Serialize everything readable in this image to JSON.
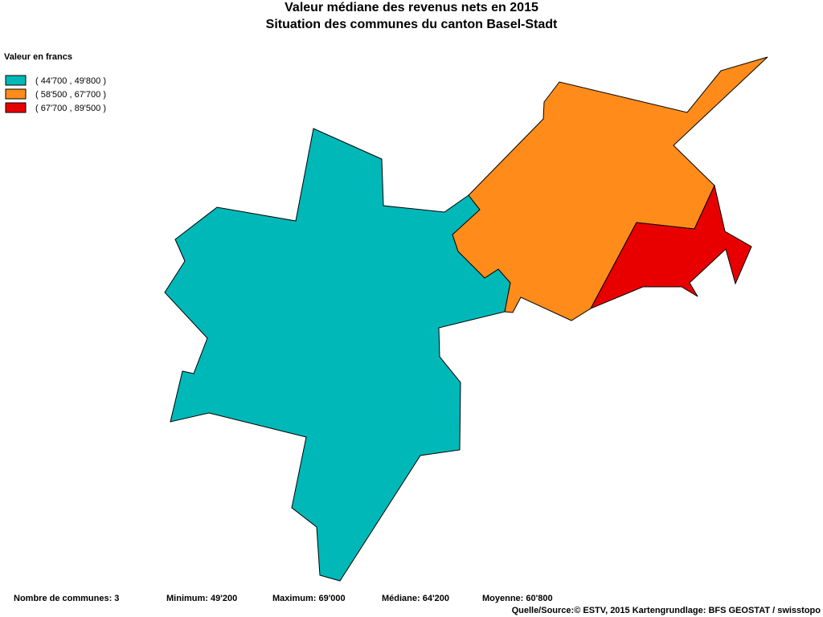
{
  "header": {
    "title": "Valeur médiane des revenus nets en 2015",
    "subtitle": "Situation des communes du canton Basel-Stadt"
  },
  "legend": {
    "title": "Valeur en francs",
    "items": [
      {
        "label": "( 44'700 , 49'800 )",
        "color": "#00b8b8"
      },
      {
        "label": "( 58'500 , 67'700 )",
        "color": "#ff8c1a"
      },
      {
        "label": "( 67'700 , 89'500 )",
        "color": "#e80000"
      }
    ]
  },
  "footer": {
    "stats": [
      "Nombre de communes: 3",
      "Minimum: 49'200",
      "Maximum: 69'000",
      "Médiane: 64'200",
      "Moyenne: 60'800"
    ],
    "source": "Quelle/Source:© ESTV, 2015 Kartengrundlage: BFS GEOSTAT / swisstopo"
  }
}
